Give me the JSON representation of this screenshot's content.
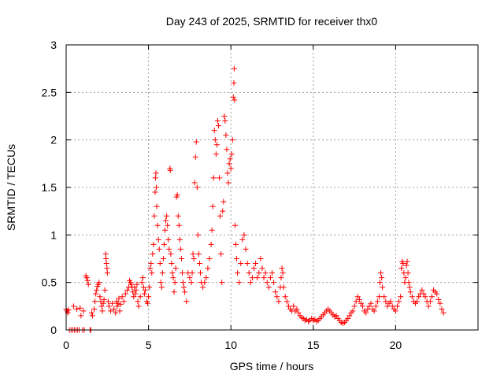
{
  "chart_data": {
    "type": "scatter",
    "title": "Day 243 of 2025, SRMTID for receiver thx0",
    "xlabel": "GPS time / hours",
    "ylabel": "SRMTID / TECUs",
    "xlim": [
      0,
      25
    ],
    "ylim": [
      0,
      3
    ],
    "x_ticks": [
      0,
      5,
      10,
      15,
      20
    ],
    "x_tick_labels": [
      "0",
      "5",
      "10",
      "15",
      "20"
    ],
    "y_ticks": [
      0,
      0.5,
      1,
      1.5,
      2,
      2.5,
      3
    ],
    "y_tick_labels": [
      "0",
      "0.5",
      "1",
      "1.5",
      "2",
      "2.5",
      "3"
    ],
    "grid": true,
    "marker": "plus",
    "color": "#ff0000",
    "series": [
      {
        "name": "SRMTID",
        "points": [
          [
            0.0,
            0.22
          ],
          [
            0.05,
            0.2
          ],
          [
            0.1,
            0.18
          ],
          [
            0.15,
            0.21
          ],
          [
            0.2,
            0.0
          ],
          [
            0.3,
            0.0
          ],
          [
            0.4,
            0.0
          ],
          [
            0.45,
            0.25
          ],
          [
            0.5,
            0.0
          ],
          [
            0.6,
            0.0
          ],
          [
            0.65,
            0.22
          ],
          [
            0.7,
            0.0
          ],
          [
            0.8,
            0.0
          ],
          [
            0.85,
            0.23
          ],
          [
            0.9,
            0.15
          ],
          [
            1.0,
            0.0
          ],
          [
            1.05,
            0.2
          ],
          [
            1.1,
            0.0
          ],
          [
            1.2,
            0.57
          ],
          [
            1.25,
            0.55
          ],
          [
            1.3,
            0.52
          ],
          [
            1.35,
            0.48
          ],
          [
            1.45,
            0.0
          ],
          [
            1.5,
            0.0
          ],
          [
            1.55,
            0.18
          ],
          [
            1.6,
            0.15
          ],
          [
            1.7,
            0.22
          ],
          [
            1.75,
            0.3
          ],
          [
            1.8,
            0.38
          ],
          [
            1.85,
            0.42
          ],
          [
            1.9,
            0.46
          ],
          [
            1.95,
            0.48
          ],
          [
            2.0,
            0.5
          ],
          [
            2.05,
            0.35
          ],
          [
            2.1,
            0.3
          ],
          [
            2.15,
            0.25
          ],
          [
            2.2,
            0.2
          ],
          [
            2.25,
            0.28
          ],
          [
            2.3,
            0.32
          ],
          [
            2.35,
            0.42
          ],
          [
            2.4,
            0.8
          ],
          [
            2.42,
            0.75
          ],
          [
            2.45,
            0.7
          ],
          [
            2.48,
            0.65
          ],
          [
            2.5,
            0.6
          ],
          [
            2.55,
            0.3
          ],
          [
            2.6,
            0.25
          ],
          [
            2.7,
            0.2
          ],
          [
            2.8,
            0.28
          ],
          [
            2.9,
            0.22
          ],
          [
            3.0,
            0.18
          ],
          [
            3.05,
            0.3
          ],
          [
            3.1,
            0.25
          ],
          [
            3.15,
            0.28
          ],
          [
            3.2,
            0.33
          ],
          [
            3.25,
            0.2
          ],
          [
            3.3,
            0.27
          ],
          [
            3.4,
            0.35
          ],
          [
            3.5,
            0.3
          ],
          [
            3.6,
            0.38
          ],
          [
            3.7,
            0.42
          ],
          [
            3.8,
            0.45
          ],
          [
            3.85,
            0.52
          ],
          [
            3.9,
            0.5
          ],
          [
            3.95,
            0.48
          ],
          [
            4.0,
            0.45
          ],
          [
            4.05,
            0.4
          ],
          [
            4.1,
            0.35
          ],
          [
            4.15,
            0.45
          ],
          [
            4.2,
            0.38
          ],
          [
            4.25,
            0.42
          ],
          [
            4.3,
            0.48
          ],
          [
            4.35,
            0.3
          ],
          [
            4.4,
            0.25
          ],
          [
            4.5,
            0.35
          ],
          [
            4.6,
            0.5
          ],
          [
            4.65,
            0.55
          ],
          [
            4.7,
            0.45
          ],
          [
            4.75,
            0.38
          ],
          [
            4.8,
            0.42
          ],
          [
            4.9,
            0.3
          ],
          [
            4.95,
            0.28
          ],
          [
            5.0,
            0.35
          ],
          [
            5.05,
            0.45
          ],
          [
            5.1,
            0.65
          ],
          [
            5.15,
            0.7
          ],
          [
            5.2,
            0.6
          ],
          [
            5.25,
            0.8
          ],
          [
            5.3,
            0.9
          ],
          [
            5.35,
            1.2
          ],
          [
            5.4,
            1.45
          ],
          [
            5.42,
            1.6
          ],
          [
            5.45,
            1.65
          ],
          [
            5.48,
            1.5
          ],
          [
            5.5,
            1.3
          ],
          [
            5.55,
            1.1
          ],
          [
            5.6,
            0.95
          ],
          [
            5.65,
            0.85
          ],
          [
            5.7,
            0.7
          ],
          [
            5.75,
            0.5
          ],
          [
            5.8,
            0.45
          ],
          [
            5.85,
            0.6
          ],
          [
            5.9,
            0.75
          ],
          [
            5.95,
            0.9
          ],
          [
            6.0,
            1.05
          ],
          [
            6.05,
            1.15
          ],
          [
            6.1,
            1.2
          ],
          [
            6.15,
            1.1
          ],
          [
            6.2,
            0.95
          ],
          [
            6.25,
            0.85
          ],
          [
            6.3,
            1.7
          ],
          [
            6.32,
            1.68
          ],
          [
            6.35,
            0.8
          ],
          [
            6.4,
            0.7
          ],
          [
            6.45,
            0.6
          ],
          [
            6.5,
            0.55
          ],
          [
            6.55,
            0.4
          ],
          [
            6.6,
            0.5
          ],
          [
            6.65,
            0.65
          ],
          [
            6.7,
            1.4
          ],
          [
            6.75,
            1.42
          ],
          [
            6.8,
            1.2
          ],
          [
            6.85,
            1.1
          ],
          [
            6.9,
            0.95
          ],
          [
            6.95,
            0.85
          ],
          [
            7.0,
            0.75
          ],
          [
            7.05,
            0.6
          ],
          [
            7.1,
            0.5
          ],
          [
            7.15,
            0.45
          ],
          [
            7.2,
            0.4
          ],
          [
            7.3,
            0.3
          ],
          [
            7.4,
            0.6
          ],
          [
            7.5,
            0.55
          ],
          [
            7.6,
            0.5
          ],
          [
            7.65,
            0.6
          ],
          [
            7.7,
            0.8
          ],
          [
            7.75,
            0.75
          ],
          [
            7.8,
            1.55
          ],
          [
            7.85,
            1.82
          ],
          [
            7.9,
            1.98
          ],
          [
            7.95,
            1.5
          ],
          [
            8.0,
            1.0
          ],
          [
            8.05,
            0.8
          ],
          [
            8.1,
            0.7
          ],
          [
            8.15,
            0.6
          ],
          [
            8.2,
            0.5
          ],
          [
            8.3,
            0.45
          ],
          [
            8.4,
            0.5
          ],
          [
            8.5,
            0.55
          ],
          [
            8.6,
            0.65
          ],
          [
            8.7,
            0.75
          ],
          [
            8.8,
            0.9
          ],
          [
            8.85,
            1.05
          ],
          [
            8.9,
            1.3
          ],
          [
            8.95,
            1.6
          ],
          [
            9.0,
            2.1
          ],
          [
            9.05,
            2.0
          ],
          [
            9.1,
            1.85
          ],
          [
            9.15,
            1.95
          ],
          [
            9.2,
            2.2
          ],
          [
            9.25,
            2.15
          ],
          [
            9.3,
            1.6
          ],
          [
            9.35,
            1.2
          ],
          [
            9.4,
            0.8
          ],
          [
            9.45,
            0.5
          ],
          [
            9.5,
            1.25
          ],
          [
            9.55,
            1.35
          ],
          [
            9.6,
            2.25
          ],
          [
            9.65,
            2.2
          ],
          [
            9.7,
            2.05
          ],
          [
            9.75,
            1.9
          ],
          [
            9.8,
            1.65
          ],
          [
            9.85,
            1.55
          ],
          [
            9.9,
            1.75
          ],
          [
            9.95,
            1.8
          ],
          [
            10.0,
            1.7
          ],
          [
            10.05,
            1.85
          ],
          [
            10.1,
            2.0
          ],
          [
            10.15,
            2.45
          ],
          [
            10.18,
            2.6
          ],
          [
            10.2,
            2.75
          ],
          [
            10.22,
            2.42
          ],
          [
            10.25,
            1.1
          ],
          [
            10.3,
            0.9
          ],
          [
            10.35,
            0.75
          ],
          [
            10.4,
            0.6
          ],
          [
            10.5,
            0.5
          ],
          [
            10.6,
            0.7
          ],
          [
            10.7,
            0.95
          ],
          [
            10.8,
            1.0
          ],
          [
            10.9,
            0.85
          ],
          [
            11.0,
            0.7
          ],
          [
            11.1,
            0.6
          ],
          [
            11.2,
            0.5
          ],
          [
            11.3,
            0.55
          ],
          [
            11.4,
            0.65
          ],
          [
            11.5,
            0.7
          ],
          [
            11.6,
            0.55
          ],
          [
            11.7,
            0.6
          ],
          [
            11.8,
            0.75
          ],
          [
            11.9,
            0.65
          ],
          [
            12.0,
            0.55
          ],
          [
            12.1,
            0.6
          ],
          [
            12.2,
            0.5
          ],
          [
            12.3,
            0.45
          ],
          [
            12.4,
            0.55
          ],
          [
            12.5,
            0.6
          ],
          [
            12.6,
            0.5
          ],
          [
            12.7,
            0.4
          ],
          [
            12.8,
            0.35
          ],
          [
            12.9,
            0.3
          ],
          [
            13.0,
            0.45
          ],
          [
            13.05,
            0.55
          ],
          [
            13.1,
            0.65
          ],
          [
            13.15,
            0.6
          ],
          [
            13.2,
            0.45
          ],
          [
            13.3,
            0.35
          ],
          [
            13.4,
            0.3
          ],
          [
            13.5,
            0.25
          ],
          [
            13.6,
            0.22
          ],
          [
            13.7,
            0.2
          ],
          [
            13.8,
            0.25
          ],
          [
            13.9,
            0.2
          ],
          [
            14.0,
            0.22
          ],
          [
            14.1,
            0.18
          ],
          [
            14.2,
            0.15
          ],
          [
            14.3,
            0.13
          ],
          [
            14.4,
            0.12
          ],
          [
            14.5,
            0.1
          ],
          [
            14.6,
            0.11
          ],
          [
            14.7,
            0.09
          ],
          [
            14.8,
            0.1
          ],
          [
            14.9,
            0.12
          ],
          [
            15.0,
            0.1
          ],
          [
            15.1,
            0.11
          ],
          [
            15.2,
            0.09
          ],
          [
            15.3,
            0.1
          ],
          [
            15.4,
            0.12
          ],
          [
            15.5,
            0.14
          ],
          [
            15.6,
            0.16
          ],
          [
            15.7,
            0.18
          ],
          [
            15.8,
            0.2
          ],
          [
            15.9,
            0.22
          ],
          [
            16.0,
            0.2
          ],
          [
            16.1,
            0.18
          ],
          [
            16.2,
            0.16
          ],
          [
            16.3,
            0.14
          ],
          [
            16.4,
            0.15
          ],
          [
            16.5,
            0.12
          ],
          [
            16.6,
            0.1
          ],
          [
            16.7,
            0.08
          ],
          [
            16.8,
            0.07
          ],
          [
            16.9,
            0.08
          ],
          [
            17.0,
            0.1
          ],
          [
            17.1,
            0.12
          ],
          [
            17.2,
            0.15
          ],
          [
            17.3,
            0.18
          ],
          [
            17.4,
            0.2
          ],
          [
            17.5,
            0.25
          ],
          [
            17.6,
            0.3
          ],
          [
            17.7,
            0.35
          ],
          [
            17.8,
            0.32
          ],
          [
            17.9,
            0.28
          ],
          [
            18.0,
            0.25
          ],
          [
            18.1,
            0.2
          ],
          [
            18.2,
            0.18
          ],
          [
            18.3,
            0.22
          ],
          [
            18.4,
            0.25
          ],
          [
            18.5,
            0.28
          ],
          [
            18.6,
            0.22
          ],
          [
            18.7,
            0.2
          ],
          [
            18.8,
            0.25
          ],
          [
            18.9,
            0.3
          ],
          [
            19.0,
            0.35
          ],
          [
            19.05,
            0.5
          ],
          [
            19.1,
            0.6
          ],
          [
            19.15,
            0.55
          ],
          [
            19.2,
            0.45
          ],
          [
            19.3,
            0.35
          ],
          [
            19.4,
            0.3
          ],
          [
            19.5,
            0.25
          ],
          [
            19.6,
            0.28
          ],
          [
            19.7,
            0.3
          ],
          [
            19.8,
            0.25
          ],
          [
            19.9,
            0.22
          ],
          [
            20.0,
            0.2
          ],
          [
            20.1,
            0.25
          ],
          [
            20.2,
            0.3
          ],
          [
            20.3,
            0.35
          ],
          [
            20.35,
            0.65
          ],
          [
            20.4,
            0.72
          ],
          [
            20.45,
            0.7
          ],
          [
            20.5,
            0.6
          ],
          [
            20.55,
            0.5
          ],
          [
            20.6,
            0.55
          ],
          [
            20.65,
            0.68
          ],
          [
            20.7,
            0.72
          ],
          [
            20.75,
            0.6
          ],
          [
            20.8,
            0.5
          ],
          [
            20.85,
            0.45
          ],
          [
            20.9,
            0.4
          ],
          [
            21.0,
            0.35
          ],
          [
            21.1,
            0.3
          ],
          [
            21.2,
            0.28
          ],
          [
            21.3,
            0.3
          ],
          [
            21.4,
            0.35
          ],
          [
            21.5,
            0.38
          ],
          [
            21.6,
            0.42
          ],
          [
            21.7,
            0.38
          ],
          [
            21.8,
            0.35
          ],
          [
            21.9,
            0.3
          ],
          [
            22.0,
            0.25
          ],
          [
            22.1,
            0.3
          ],
          [
            22.2,
            0.35
          ],
          [
            22.3,
            0.42
          ],
          [
            22.4,
            0.4
          ],
          [
            22.5,
            0.38
          ],
          [
            22.6,
            0.32
          ],
          [
            22.7,
            0.28
          ],
          [
            22.8,
            0.22
          ],
          [
            22.9,
            0.18
          ]
        ]
      }
    ]
  }
}
